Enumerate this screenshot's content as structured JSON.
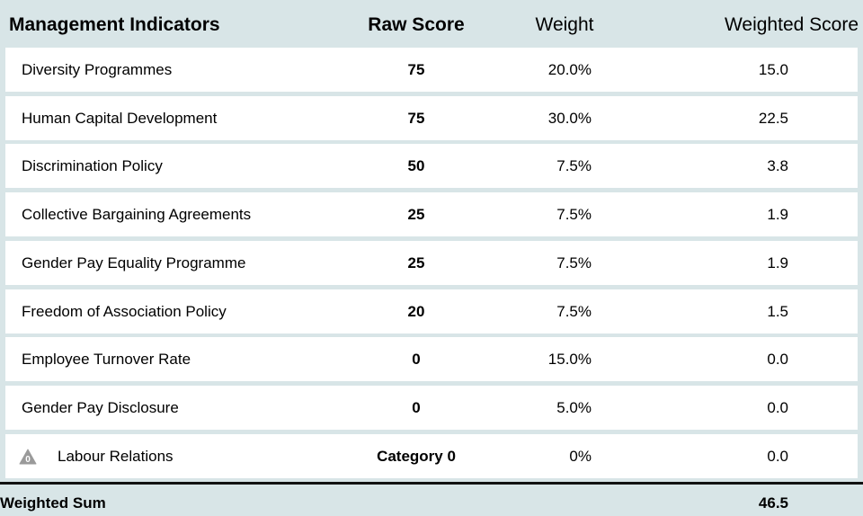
{
  "header": [
    "Management Indicators",
    "Raw Score",
    "Weight",
    "Weighted Score"
  ],
  "rows": [
    [
      "Diversity Programmes",
      "75",
      "20.0%",
      "15.0"
    ],
    [
      "Human Capital Development",
      "75",
      "30.0%",
      "22.5"
    ],
    [
      "Discrimination Policy",
      "50",
      "7.5%",
      "3.8"
    ],
    [
      "Collective Bargaining Agreements",
      "25",
      "7.5%",
      "1.9"
    ],
    [
      "Gender Pay Equality Programme",
      "25",
      "7.5%",
      "1.9"
    ],
    [
      "Freedom of Association Policy",
      "20",
      "7.5%",
      "1.5"
    ],
    [
      "Employee Turnover Rate",
      "0",
      "15.0%",
      "0.0"
    ],
    [
      "Gender Pay Disclosure",
      "0",
      "5.0%",
      "0.0"
    ],
    [
      "Labour Relations",
      "Category 0",
      "0%",
      "0.0"
    ]
  ],
  "warning_icon": {
    "row": 8,
    "label": "0"
  },
  "footer": {
    "label": "Weighted Sum",
    "value": "46.5"
  }
}
